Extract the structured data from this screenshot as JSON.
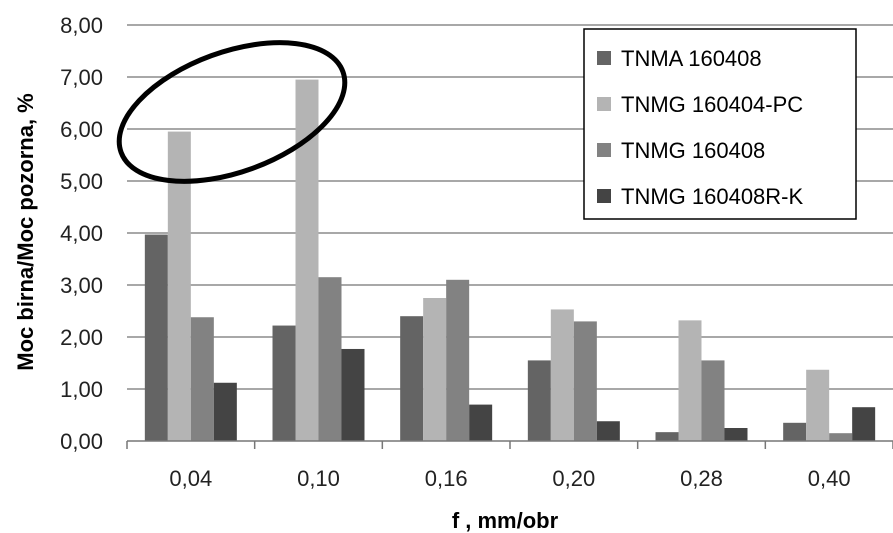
{
  "chart_data": {
    "type": "bar",
    "xlabel": "f , mm/obr",
    "ylabel": "Moc birna/Moc pozorna, %",
    "ylim": [
      0,
      8
    ],
    "ytick_labels": [
      "0,00",
      "1,00",
      "2,00",
      "3,00",
      "4,00",
      "5,00",
      "6,00",
      "7,00",
      "8,00"
    ],
    "categories": [
      "0,04",
      "0,10",
      "0,16",
      "0,20",
      "0,28",
      "0,40"
    ],
    "grid": "horizontal",
    "legend_position": "top-right",
    "series": [
      {
        "name": "TNMA 160408",
        "color": "#646464",
        "values": [
          3.97,
          2.22,
          2.4,
          1.55,
          0.17,
          0.35
        ]
      },
      {
        "name": "TNMG 160404-PC",
        "color": "#b4b4b4",
        "values": [
          5.95,
          6.95,
          2.75,
          2.53,
          2.32,
          1.37
        ]
      },
      {
        "name": "TNMG 160408",
        "color": "#828282",
        "values": [
          2.38,
          3.15,
          3.1,
          2.3,
          1.55,
          0.15
        ]
      },
      {
        "name": "TNMG 160408R-K",
        "color": "#444444",
        "values": [
          1.12,
          1.77,
          0.7,
          0.38,
          0.25,
          0.65
        ]
      }
    ],
    "annotation": {
      "shape": "ellipse",
      "highlights": [
        "0,04",
        "0,10"
      ]
    }
  }
}
